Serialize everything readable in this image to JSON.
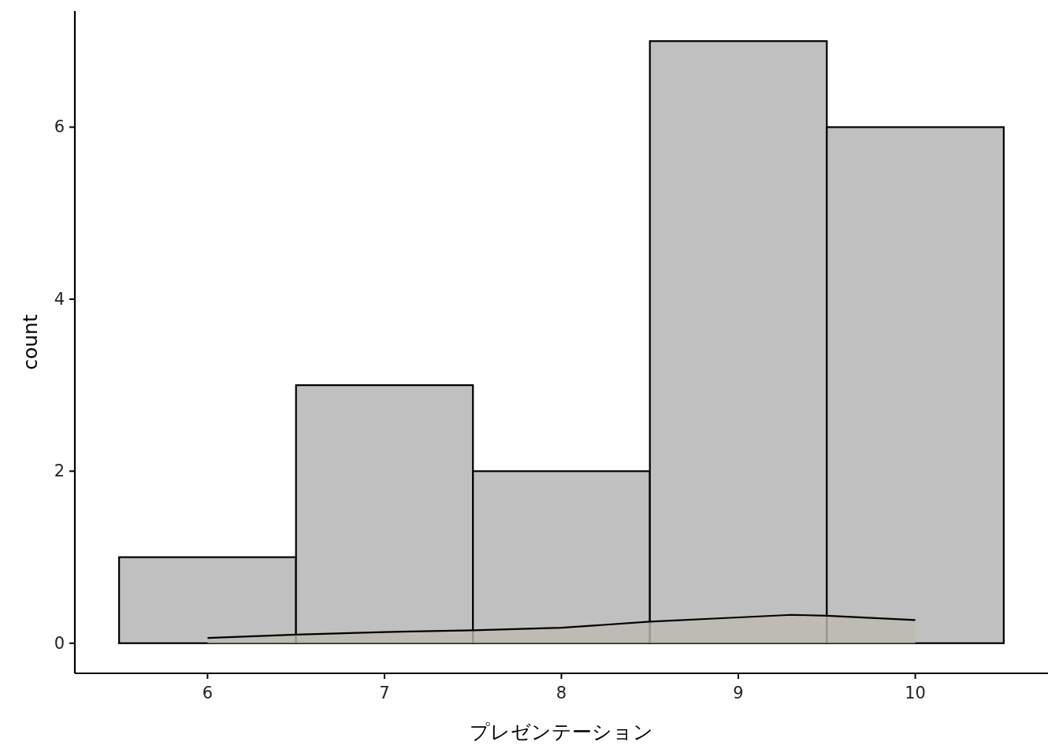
{
  "chart_data": {
    "type": "histogram",
    "xlabel": "プレゼンテーション",
    "ylabel": "count",
    "bins": [
      5.5,
      6.5,
      7.5,
      8.5,
      9.5,
      10.5
    ],
    "values": [
      1,
      3,
      2,
      7,
      6
    ],
    "color": "#c0c0c0",
    "xlim": [
      5.25,
      10.75
    ],
    "ylim": [
      -0.35,
      7.35
    ],
    "xticks": [
      6,
      7,
      8,
      9,
      10
    ],
    "yticks": [
      0,
      2,
      4,
      6
    ],
    "grid": false,
    "series": [
      {
        "type": "area",
        "color": "#bdb9b2",
        "x": [
          6,
          6.5,
          7,
          7.5,
          8,
          8.5,
          9,
          9.3,
          9.5,
          10
        ],
        "values": [
          0.06,
          0.1,
          0.13,
          0.15,
          0.18,
          0.25,
          0.3,
          0.33,
          0.32,
          0.27
        ]
      }
    ]
  }
}
